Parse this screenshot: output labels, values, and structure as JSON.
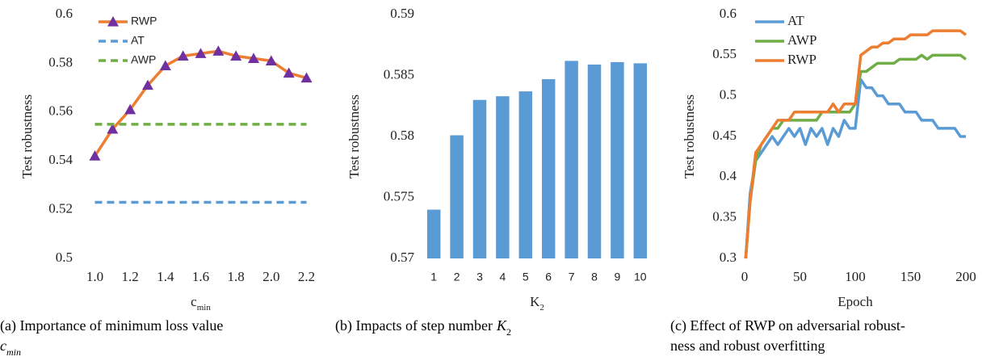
{
  "chart_data": [
    {
      "type": "line",
      "ylabel": "Test robustness",
      "xlabel": "c",
      "xlabel_sub": "min",
      "x": [
        1,
        1.1,
        1.2,
        1.3,
        1.4,
        1.5,
        1.6,
        1.7,
        1.8,
        1.9,
        2,
        2.1,
        2.2
      ],
      "xlim": [
        0.92,
        2.28
      ],
      "xticks": [
        {
          "value": 1,
          "label": "1.0"
        },
        1.2,
        1.4,
        1.6,
        1.8,
        {
          "value": 2,
          "label": "2.0"
        },
        2.2
      ],
      "ylim": [
        0.5,
        0.6
      ],
      "yticks": [
        0.5,
        0.52,
        0.54,
        0.56,
        0.58,
        0.6
      ],
      "legend": "upper left",
      "series": [
        {
          "name": "RWP",
          "color": "#ed7d31",
          "marker": "triangle",
          "marker_color": "#7030a0",
          "dashed": false,
          "values": [
            0.542,
            0.553,
            0.561,
            0.571,
            0.579,
            0.583,
            0.584,
            0.585,
            0.583,
            0.582,
            0.581,
            0.576,
            0.574
          ]
        },
        {
          "name": "AT",
          "color": "#5b9bd5",
          "dashed": true,
          "values": [
            0.523,
            0.523,
            0.523,
            0.523,
            0.523,
            0.523,
            0.523,
            0.523,
            0.523,
            0.523,
            0.523,
            0.523,
            0.523
          ]
        },
        {
          "name": "AWP",
          "color": "#70ad47",
          "dashed": true,
          "values": [
            0.555,
            0.555,
            0.555,
            0.555,
            0.555,
            0.555,
            0.555,
            0.555,
            0.555,
            0.555,
            0.555,
            0.555,
            0.555
          ]
        }
      ],
      "caption": [
        "(a) Importance of minimum loss value"
      ],
      "caption_math": "c",
      "caption_math_sub": "min"
    },
    {
      "type": "bar",
      "ylabel": "Test robustness",
      "xlabel": "K",
      "xlabel_sub": "2",
      "categories": [
        "1",
        "2",
        "3",
        "4",
        "5",
        "6",
        "7",
        "8",
        "9",
        "10"
      ],
      "values": [
        0.574,
        0.5801,
        0.583,
        0.5833,
        0.5837,
        0.5847,
        0.5862,
        0.5859,
        0.5861,
        0.586
      ],
      "color": "#5b9bd5",
      "ylim": [
        0.57,
        0.59
      ],
      "yticks": [
        0.57,
        0.575,
        0.58,
        0.585,
        0.59
      ],
      "caption": [
        "(b) Impacts of step number"
      ],
      "caption_math": "K",
      "caption_math_sub": "2"
    },
    {
      "type": "line",
      "ylabel": "Test robustness",
      "xlabel": "Epoch",
      "x": [
        1,
        5,
        10,
        15,
        20,
        25,
        30,
        35,
        40,
        45,
        50,
        55,
        60,
        65,
        70,
        75,
        80,
        85,
        90,
        95,
        100,
        105,
        110,
        115,
        120,
        125,
        130,
        135,
        140,
        145,
        150,
        155,
        160,
        165,
        170,
        175,
        180,
        185,
        190,
        195,
        200
      ],
      "xlim": [
        0,
        200
      ],
      "xticks": [
        0,
        50,
        100,
        150,
        200
      ],
      "ylim": [
        0.3,
        0.6
      ],
      "yticks": [
        0.3,
        0.35,
        0.4,
        0.45,
        0.5,
        0.55,
        0.6
      ],
      "legend": "upper left",
      "series": [
        {
          "name": "AT",
          "color": "#5b9bd5",
          "values": [
            0.3,
            0.38,
            0.42,
            0.43,
            0.44,
            0.45,
            0.44,
            0.45,
            0.46,
            0.45,
            0.46,
            0.44,
            0.46,
            0.45,
            0.46,
            0.44,
            0.46,
            0.45,
            0.47,
            0.46,
            0.46,
            0.52,
            0.51,
            0.51,
            0.5,
            0.5,
            0.49,
            0.49,
            0.49,
            0.48,
            0.48,
            0.48,
            0.47,
            0.47,
            0.47,
            0.46,
            0.46,
            0.46,
            0.46,
            0.45,
            0.45
          ]
        },
        {
          "name": "AWP",
          "color": "#70ad47",
          "values": [
            0.3,
            0.37,
            0.42,
            0.44,
            0.45,
            0.46,
            0.46,
            0.47,
            0.47,
            0.47,
            0.47,
            0.47,
            0.47,
            0.47,
            0.48,
            0.48,
            0.48,
            0.48,
            0.48,
            0.48,
            0.49,
            0.53,
            0.53,
            0.535,
            0.54,
            0.54,
            0.54,
            0.54,
            0.545,
            0.545,
            0.545,
            0.545,
            0.55,
            0.545,
            0.55,
            0.55,
            0.55,
            0.55,
            0.55,
            0.55,
            0.545
          ]
        },
        {
          "name": "RWP",
          "color": "#ed7d31",
          "values": [
            0.3,
            0.37,
            0.43,
            0.44,
            0.45,
            0.46,
            0.47,
            0.47,
            0.47,
            0.48,
            0.48,
            0.48,
            0.48,
            0.48,
            0.48,
            0.48,
            0.49,
            0.48,
            0.49,
            0.49,
            0.49,
            0.55,
            0.555,
            0.56,
            0.56,
            0.565,
            0.565,
            0.57,
            0.57,
            0.57,
            0.575,
            0.575,
            0.575,
            0.575,
            0.58,
            0.58,
            0.58,
            0.58,
            0.58,
            0.58,
            0.575
          ]
        }
      ],
      "caption": [
        "(c) Effect of RWP on adversarial robust-",
        "ness and robust overfitting"
      ]
    }
  ]
}
